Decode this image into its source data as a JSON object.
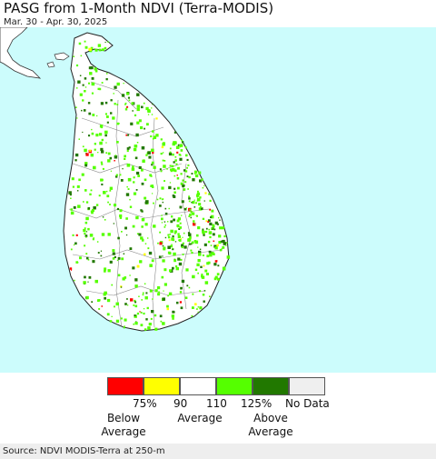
{
  "header": {
    "title": "PASG from 1-Month NDVI (Terra-MODIS)",
    "date_range": "Mar. 30 - Apr. 30, 2025"
  },
  "map": {
    "ocean_color": "#ccfcfc",
    "land_color": "#ffffff",
    "boundary_color": "#888888"
  },
  "legend": {
    "swatches": [
      {
        "color": "#ff0000"
      },
      {
        "color": "#ffff00"
      },
      {
        "color": "#ffffff"
      },
      {
        "color": "#55ff00"
      },
      {
        "color": "#217800"
      },
      {
        "color": "#efefef"
      }
    ],
    "ticks": [
      "75%",
      "90",
      "110",
      "125%",
      "No Data"
    ],
    "groups": [
      {
        "line1": "Below",
        "line2": "Average"
      },
      {
        "line1": "Average",
        "line2": ""
      },
      {
        "line1": "Above",
        "line2": "Average"
      }
    ]
  },
  "footer": {
    "source": "Source: NDVI MODIS-Terra at 250-m"
  }
}
